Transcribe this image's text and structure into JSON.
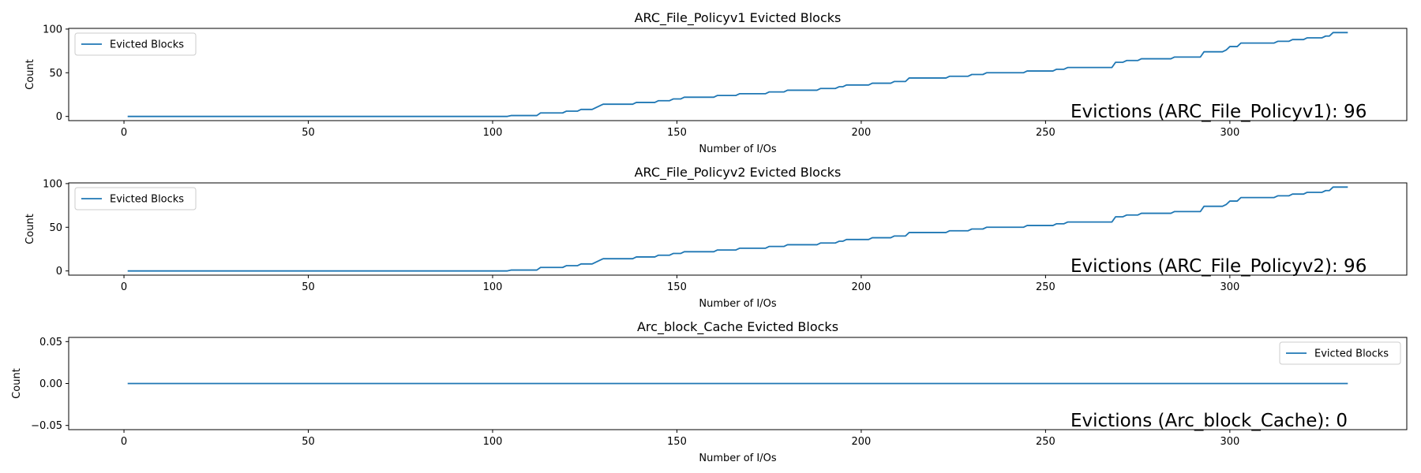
{
  "chart_data": [
    {
      "type": "line",
      "title": "ARC_File_Policyv1 Evicted Blocks",
      "xlabel": "Number of I/Os",
      "ylabel": "Count",
      "xlim": [
        -15,
        348
      ],
      "ylim": [
        -4.8,
        100.8
      ],
      "xticks": [
        0,
        50,
        100,
        150,
        200,
        250,
        300
      ],
      "yticks": [
        0,
        50,
        100
      ],
      "ytick_labels": [
        "0",
        "50",
        "100"
      ],
      "grid": false,
      "legend": {
        "entries": [
          "Evicted Blocks"
        ],
        "placement": "upper left"
      },
      "annotation": "Evictions (ARC_File_Policyv1): 96",
      "series": [
        {
          "name": "Evicted Blocks",
          "color": "#1f77b4",
          "points": [
            [
              1,
              0
            ],
            [
              104,
              0
            ],
            [
              105,
              1
            ],
            [
              112,
              1
            ],
            [
              113,
              4
            ],
            [
              119,
              4
            ],
            [
              120,
              6
            ],
            [
              123,
              6
            ],
            [
              124,
              8
            ],
            [
              127,
              8
            ],
            [
              130,
              14
            ],
            [
              138,
              14
            ],
            [
              139,
              16
            ],
            [
              144,
              16
            ],
            [
              145,
              18
            ],
            [
              148,
              18
            ],
            [
              149,
              20
            ],
            [
              151,
              20
            ],
            [
              152,
              22
            ],
            [
              160,
              22
            ],
            [
              161,
              24
            ],
            [
              166,
              24
            ],
            [
              167,
              26
            ],
            [
              174,
              26
            ],
            [
              175,
              28
            ],
            [
              179,
              28
            ],
            [
              180,
              30
            ],
            [
              188,
              30
            ],
            [
              189,
              32
            ],
            [
              193,
              32
            ],
            [
              194,
              34
            ],
            [
              195,
              34
            ],
            [
              196,
              36
            ],
            [
              202,
              36
            ],
            [
              203,
              38
            ],
            [
              208,
              38
            ],
            [
              209,
              40
            ],
            [
              212,
              40
            ],
            [
              213,
              44
            ],
            [
              223,
              44
            ],
            [
              224,
              46
            ],
            [
              229,
              46
            ],
            [
              230,
              48
            ],
            [
              233,
              48
            ],
            [
              234,
              50
            ],
            [
              244,
              50
            ],
            [
              245,
              52
            ],
            [
              252,
              52
            ],
            [
              253,
              54
            ],
            [
              255,
              54
            ],
            [
              256,
              56
            ],
            [
              268,
              56
            ],
            [
              269,
              62
            ],
            [
              271,
              62
            ],
            [
              272,
              64
            ],
            [
              275,
              64
            ],
            [
              276,
              66
            ],
            [
              284,
              66
            ],
            [
              285,
              68
            ],
            [
              292,
              68
            ],
            [
              293,
              74
            ],
            [
              298,
              74
            ],
            [
              299,
              76
            ],
            [
              300,
              80
            ],
            [
              302,
              80
            ],
            [
              303,
              84
            ],
            [
              312,
              84
            ],
            [
              313,
              86
            ],
            [
              316,
              86
            ],
            [
              317,
              88
            ],
            [
              320,
              88
            ],
            [
              321,
              90
            ],
            [
              325,
              90
            ],
            [
              326,
              92
            ],
            [
              327,
              92
            ],
            [
              328,
              96
            ],
            [
              332,
              96
            ]
          ]
        }
      ]
    },
    {
      "type": "line",
      "title": "ARC_File_Policyv2 Evicted Blocks",
      "xlabel": "Number of I/Os",
      "ylabel": "Count",
      "xlim": [
        -15,
        348
      ],
      "ylim": [
        -4.8,
        100.8
      ],
      "xticks": [
        0,
        50,
        100,
        150,
        200,
        250,
        300
      ],
      "yticks": [
        0,
        50,
        100
      ],
      "ytick_labels": [
        "0",
        "50",
        "100"
      ],
      "grid": false,
      "legend": {
        "entries": [
          "Evicted Blocks"
        ],
        "placement": "upper left"
      },
      "annotation": "Evictions (ARC_File_Policyv2): 96",
      "series": [
        {
          "name": "Evicted Blocks",
          "color": "#1f77b4",
          "points": [
            [
              1,
              0
            ],
            [
              104,
              0
            ],
            [
              105,
              1
            ],
            [
              112,
              1
            ],
            [
              113,
              4
            ],
            [
              119,
              4
            ],
            [
              120,
              6
            ],
            [
              123,
              6
            ],
            [
              124,
              8
            ],
            [
              127,
              8
            ],
            [
              130,
              14
            ],
            [
              138,
              14
            ],
            [
              139,
              16
            ],
            [
              144,
              16
            ],
            [
              145,
              18
            ],
            [
              148,
              18
            ],
            [
              149,
              20
            ],
            [
              151,
              20
            ],
            [
              152,
              22
            ],
            [
              160,
              22
            ],
            [
              161,
              24
            ],
            [
              166,
              24
            ],
            [
              167,
              26
            ],
            [
              174,
              26
            ],
            [
              175,
              28
            ],
            [
              179,
              28
            ],
            [
              180,
              30
            ],
            [
              188,
              30
            ],
            [
              189,
              32
            ],
            [
              193,
              32
            ],
            [
              194,
              34
            ],
            [
              195,
              34
            ],
            [
              196,
              36
            ],
            [
              202,
              36
            ],
            [
              203,
              38
            ],
            [
              208,
              38
            ],
            [
              209,
              40
            ],
            [
              212,
              40
            ],
            [
              213,
              44
            ],
            [
              223,
              44
            ],
            [
              224,
              46
            ],
            [
              229,
              46
            ],
            [
              230,
              48
            ],
            [
              233,
              48
            ],
            [
              234,
              50
            ],
            [
              244,
              50
            ],
            [
              245,
              52
            ],
            [
              252,
              52
            ],
            [
              253,
              54
            ],
            [
              255,
              54
            ],
            [
              256,
              56
            ],
            [
              268,
              56
            ],
            [
              269,
              62
            ],
            [
              271,
              62
            ],
            [
              272,
              64
            ],
            [
              275,
              64
            ],
            [
              276,
              66
            ],
            [
              284,
              66
            ],
            [
              285,
              68
            ],
            [
              292,
              68
            ],
            [
              293,
              74
            ],
            [
              298,
              74
            ],
            [
              299,
              76
            ],
            [
              300,
              80
            ],
            [
              302,
              80
            ],
            [
              303,
              84
            ],
            [
              312,
              84
            ],
            [
              313,
              86
            ],
            [
              316,
              86
            ],
            [
              317,
              88
            ],
            [
              320,
              88
            ],
            [
              321,
              90
            ],
            [
              325,
              90
            ],
            [
              326,
              92
            ],
            [
              327,
              92
            ],
            [
              328,
              96
            ],
            [
              332,
              96
            ]
          ]
        }
      ]
    },
    {
      "type": "line",
      "title": "Arc_block_Cache Evicted Blocks",
      "xlabel": "Number of I/Os",
      "ylabel": "Count",
      "xlim": [
        -15,
        348
      ],
      "ylim": [
        -0.055,
        0.055
      ],
      "xticks": [
        0,
        50,
        100,
        150,
        200,
        250,
        300
      ],
      "yticks": [
        -0.05,
        0,
        0.05
      ],
      "ytick_labels": [
        "−0.05",
        "0.00",
        "0.05"
      ],
      "grid": false,
      "legend": {
        "entries": [
          "Evicted Blocks"
        ],
        "placement": "upper right"
      },
      "annotation": "Evictions (Arc_block_Cache): 0",
      "series": [
        {
          "name": "Evicted Blocks",
          "color": "#1f77b4",
          "points": [
            [
              1,
              0
            ],
            [
              332,
              0
            ]
          ]
        }
      ]
    }
  ]
}
